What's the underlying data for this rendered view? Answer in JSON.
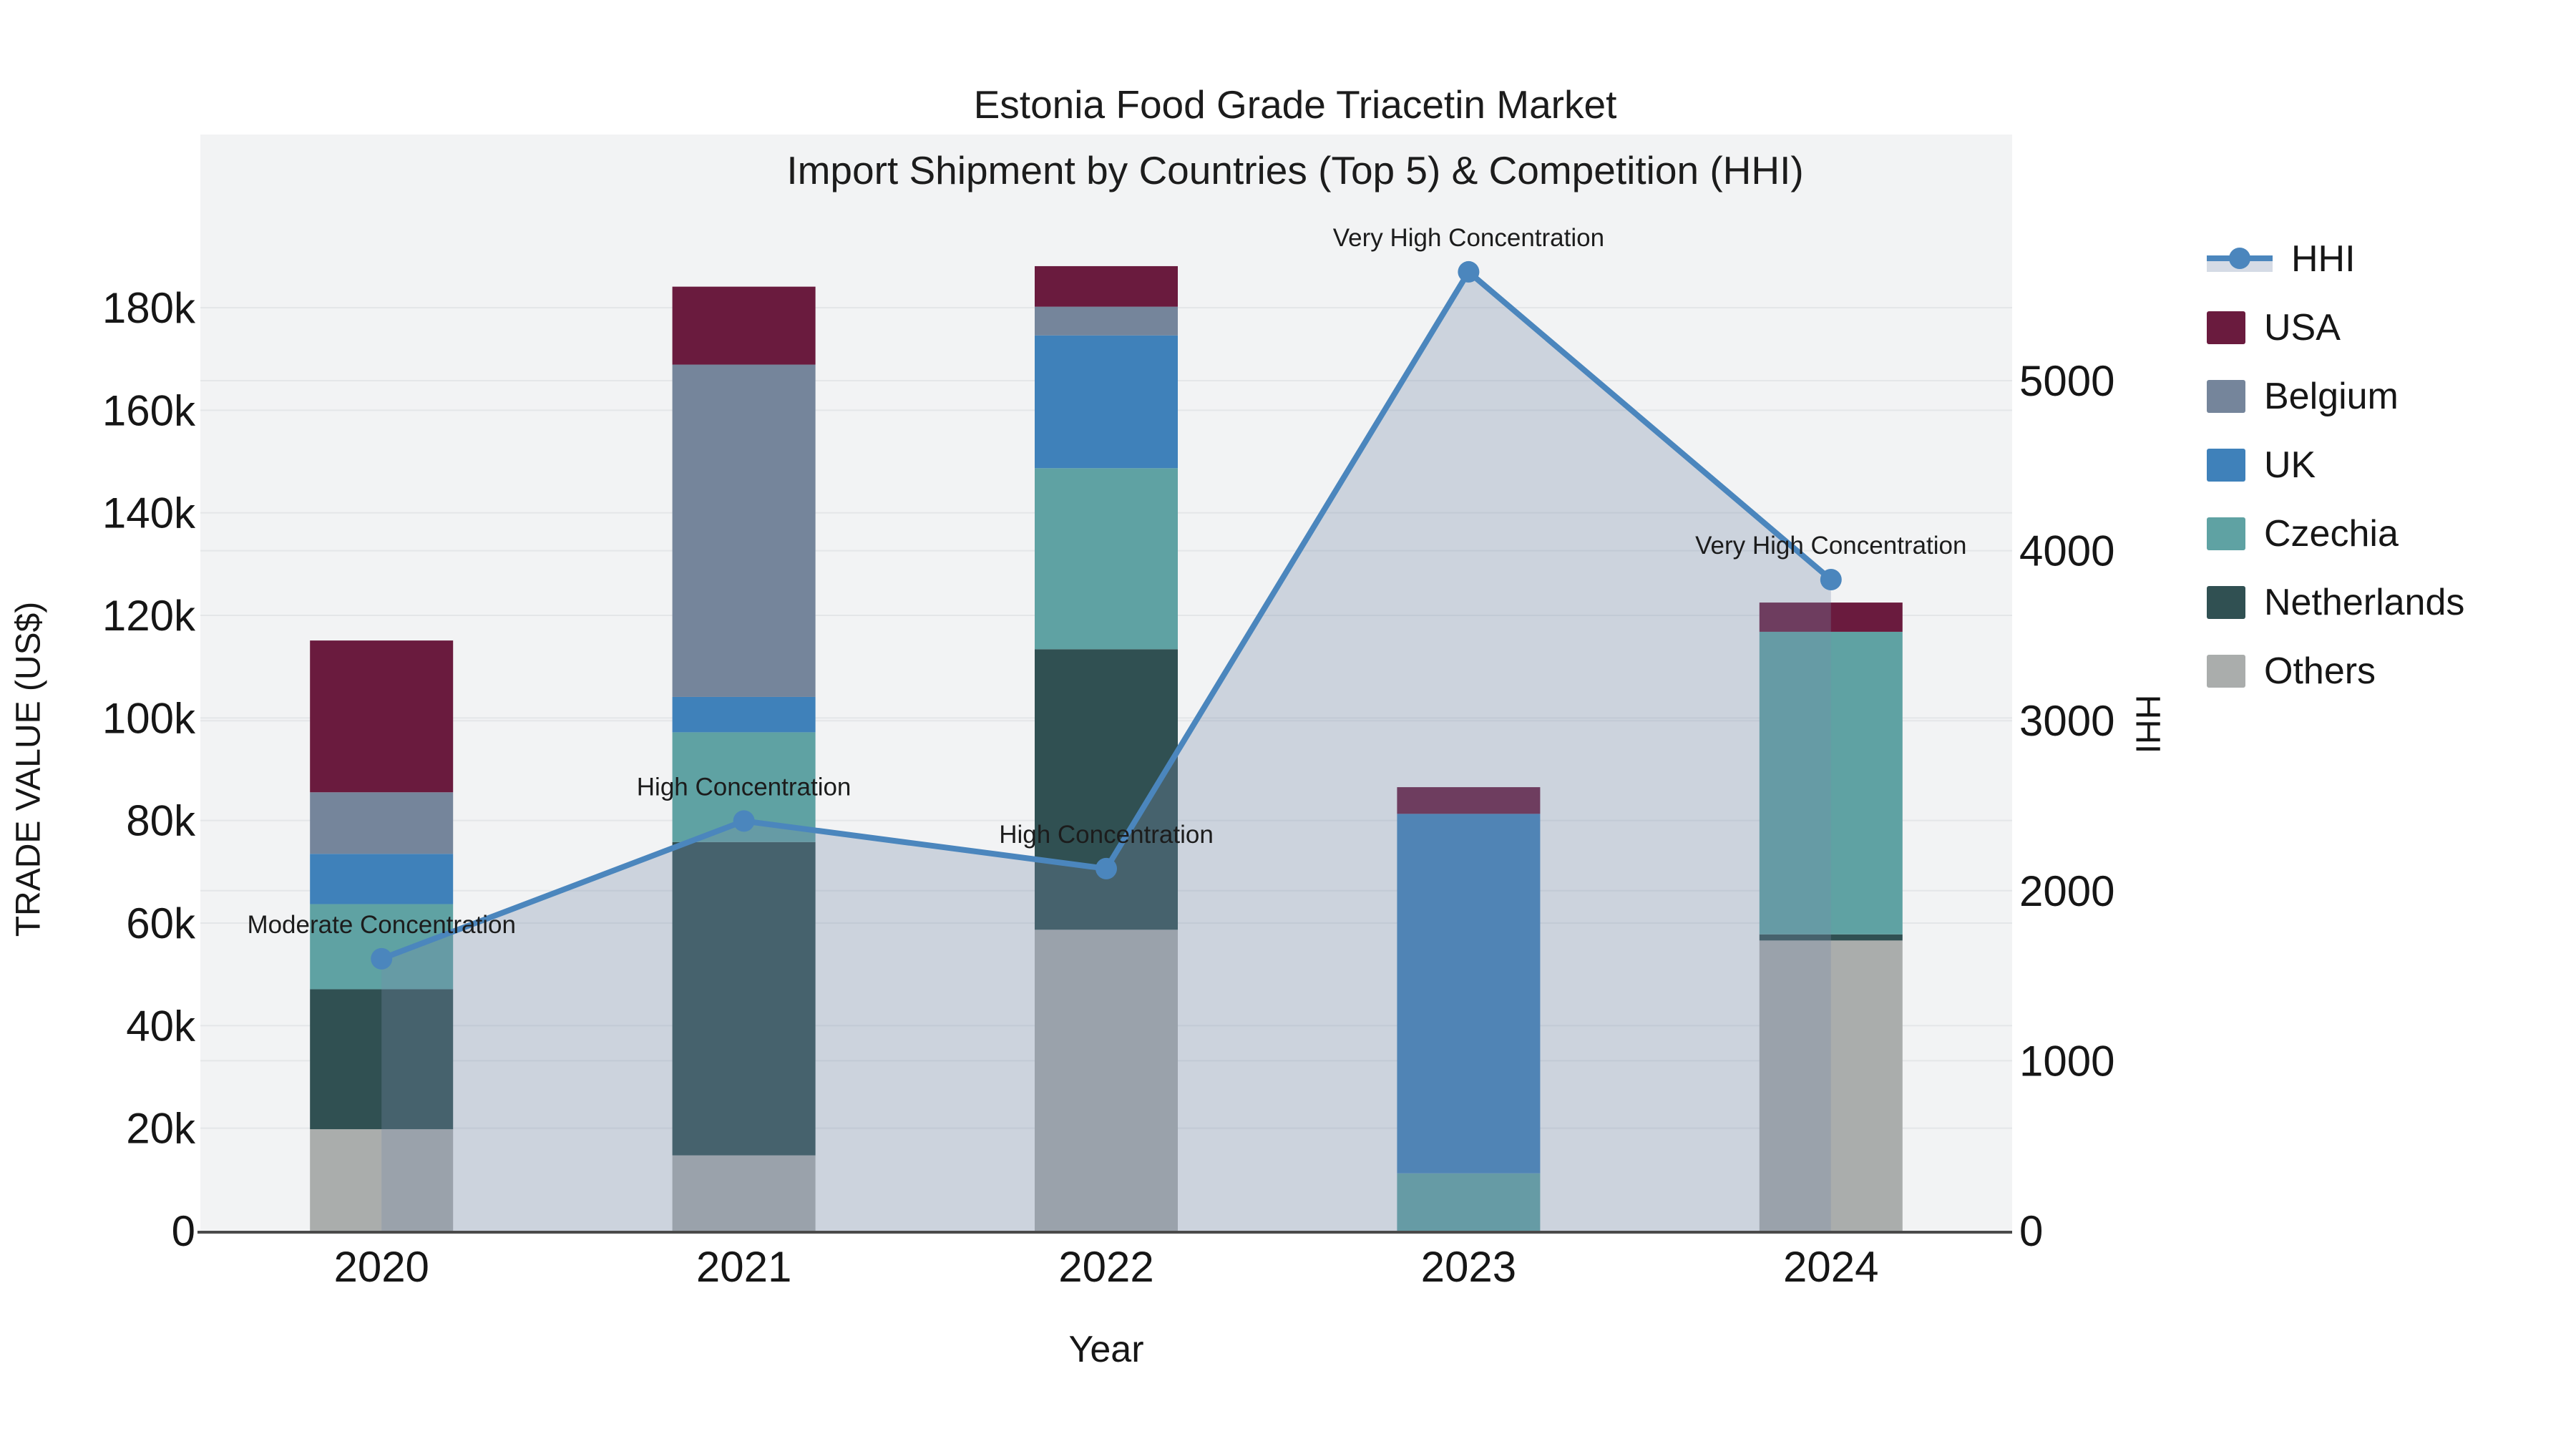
{
  "figure": {
    "title_line1": "Estonia Food Grade Triacetin Market",
    "title_line2": "Import Shipment by Countries (Top 5) & Competition (HHI)"
  },
  "axes": {
    "y_left": {
      "title": "TRADE VALUE (US$)",
      "ticks": [
        {
          "label": "0",
          "value": 0
        },
        {
          "label": "20k",
          "value": 20000
        },
        {
          "label": "40k",
          "value": 40000
        },
        {
          "label": "60k",
          "value": 60000
        },
        {
          "label": "80k",
          "value": 80000
        },
        {
          "label": "100k",
          "value": 100000
        },
        {
          "label": "120k",
          "value": 120000
        },
        {
          "label": "140k",
          "value": 140000
        },
        {
          "label": "160k",
          "value": 160000
        },
        {
          "label": "180k",
          "value": 180000
        }
      ]
    },
    "y_right": {
      "title": "HHI",
      "ticks": [
        {
          "label": "0",
          "value": 0
        },
        {
          "label": "1000",
          "value": 1000
        },
        {
          "label": "2000",
          "value": 2000
        },
        {
          "label": "3000",
          "value": 3000
        },
        {
          "label": "4000",
          "value": 4000
        },
        {
          "label": "5000",
          "value": 5000
        }
      ]
    },
    "x": {
      "title": "Year"
    }
  },
  "legend": {
    "items": [
      {
        "label": "HHI",
        "type": "line",
        "color": "#4b86bd"
      },
      {
        "label": "USA",
        "type": "swatch",
        "color": "#6a1b3e"
      },
      {
        "label": "Belgium",
        "type": "swatch",
        "color": "#75859b"
      },
      {
        "label": "UK",
        "type": "swatch",
        "color": "#3f81ba"
      },
      {
        "label": "Czechia",
        "type": "swatch",
        "color": "#5fa2a3"
      },
      {
        "label": "Netherlands",
        "type": "swatch",
        "color": "#305052"
      },
      {
        "label": "Others",
        "type": "swatch",
        "color": "#aaadac"
      }
    ]
  },
  "colors": {
    "usa": "#6a1b3e",
    "belgium": "#75859b",
    "uk": "#3f81ba",
    "czechia": "#5fa2a3",
    "netherlands": "#305052",
    "others": "#aaadac",
    "hhi_line": "#4b86bd",
    "hhi_fill": "rgba(120,140,170,0.31)",
    "plot_bg": "#f2f3f4",
    "grid": "#e4e6e8",
    "axis_line": "#4a4a4a",
    "text": "#161616",
    "annotation_text": "#1c1c1c"
  },
  "chart_data": {
    "type": "bar+line",
    "title": "Estonia Food Grade Triacetin Market — Import Shipment by Countries (Top 5) & Competition (HHI)",
    "categories": [
      "2020",
      "2021",
      "2022",
      "2023",
      "2024"
    ],
    "bar_value_unit": "US$",
    "stack_order_bottom_to_top": [
      "Others",
      "Netherlands",
      "Czechia",
      "UK",
      "Belgium",
      "USA"
    ],
    "series": [
      {
        "name": "USA",
        "values": [
          29600,
          15200,
          7900,
          5200,
          5700
        ]
      },
      {
        "name": "Belgium",
        "values": [
          12000,
          64800,
          5600,
          0,
          0
        ]
      },
      {
        "name": "UK",
        "values": [
          9800,
          6900,
          25900,
          70100,
          0
        ]
      },
      {
        "name": "Czechia",
        "values": [
          16600,
          21400,
          35300,
          11200,
          59000
        ]
      },
      {
        "name": "Netherlands",
        "values": [
          27300,
          61100,
          54700,
          0,
          1200
        ]
      },
      {
        "name": "Others",
        "values": [
          19800,
          14700,
          58700,
          0,
          56600
        ]
      }
    ],
    "bar_totals": [
      115100,
      184100,
      188100,
      86500,
      122500
    ],
    "line_series": {
      "name": "HHI",
      "axis": "right",
      "values": [
        1600,
        2410,
        2130,
        5640,
        3830
      ],
      "area_fill": true
    },
    "annotations": [
      {
        "category": "2020",
        "text": "Moderate Concentration"
      },
      {
        "category": "2021",
        "text": "High Concentration"
      },
      {
        "category": "2022",
        "text": "High Concentration"
      },
      {
        "category": "2023",
        "text": "Very High Concentration"
      },
      {
        "category": "2024",
        "text": "Very High Concentration"
      }
    ],
    "xlabel": "Year",
    "ylabel_left": "TRADE VALUE (US$)",
    "ylabel_right": "HHI",
    "ylim_left": [
      0,
      214000
    ],
    "ylim_right": [
      0,
      6450
    ],
    "grid": true,
    "legend_position": "right"
  }
}
